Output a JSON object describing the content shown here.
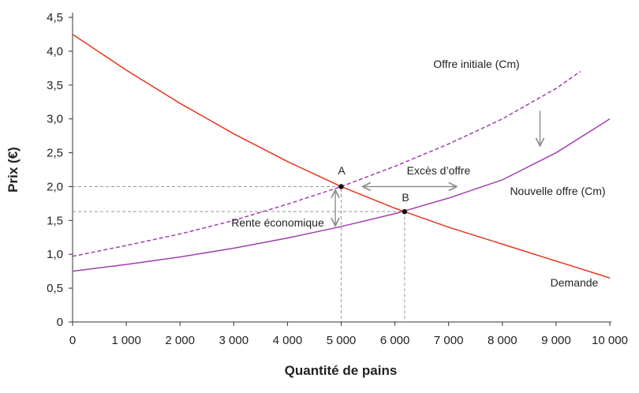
{
  "chart_data": {
    "type": "line",
    "xlabel": "Quantité de pains",
    "ylabel": "Prix (€)",
    "xlim": [
      0,
      10000
    ],
    "ylim": [
      0,
      4.5
    ],
    "xticks": [
      0,
      1000,
      2000,
      3000,
      4000,
      5000,
      6000,
      7000,
      8000,
      9000,
      10000
    ],
    "xtick_labels": [
      "0",
      "1 000",
      "2 000",
      "3 000",
      "4 000",
      "5 000",
      "6 000",
      "7 000",
      "8 000",
      "9 000",
      "10 000"
    ],
    "yticks": [
      0,
      0.5,
      1,
      1.5,
      2,
      2.5,
      3,
      3.5,
      4,
      4.5
    ],
    "ytick_labels": [
      "0",
      "0,5",
      "1,0",
      "1,5",
      "2,0",
      "2,5",
      "3,0",
      "3,5",
      "4,0",
      "4,5"
    ],
    "grid": false,
    "series": [
      {
        "name": "Demande",
        "color": "#e8341c",
        "style": "solid",
        "x": [
          0,
          1000,
          2000,
          3000,
          4000,
          5000,
          6000,
          7000,
          8000,
          9000,
          10000
        ],
        "y": [
          4.25,
          3.72,
          3.23,
          2.78,
          2.37,
          2.0,
          1.68,
          1.4,
          1.15,
          0.9,
          0.65
        ]
      },
      {
        "name": "Offre initiale (Cm)",
        "color": "#a23fb0",
        "style": "dashed",
        "x": [
          0,
          1000,
          2000,
          3000,
          4000,
          5000,
          6000,
          7000,
          8000,
          9000,
          9450
        ],
        "y": [
          0.97,
          1.13,
          1.3,
          1.5,
          1.74,
          2.0,
          2.3,
          2.63,
          3.0,
          3.45,
          3.7
        ]
      },
      {
        "name": "Nouvelle offre (Cm)",
        "color": "#a23fb0",
        "style": "solid",
        "x": [
          0,
          1000,
          2000,
          3000,
          4000,
          5000,
          6000,
          7000,
          8000,
          9000,
          10000
        ],
        "y": [
          0.75,
          0.85,
          0.96,
          1.09,
          1.24,
          1.41,
          1.6,
          1.83,
          2.1,
          2.5,
          3.0
        ]
      }
    ],
    "points": [
      {
        "label": "A",
        "x": 5000,
        "y": 2.0
      },
      {
        "label": "B",
        "x": 6180,
        "y": 1.63
      }
    ],
    "annotations": {
      "excess_supply": "Excès d’offre",
      "economic_rent": "Rente économique"
    }
  }
}
